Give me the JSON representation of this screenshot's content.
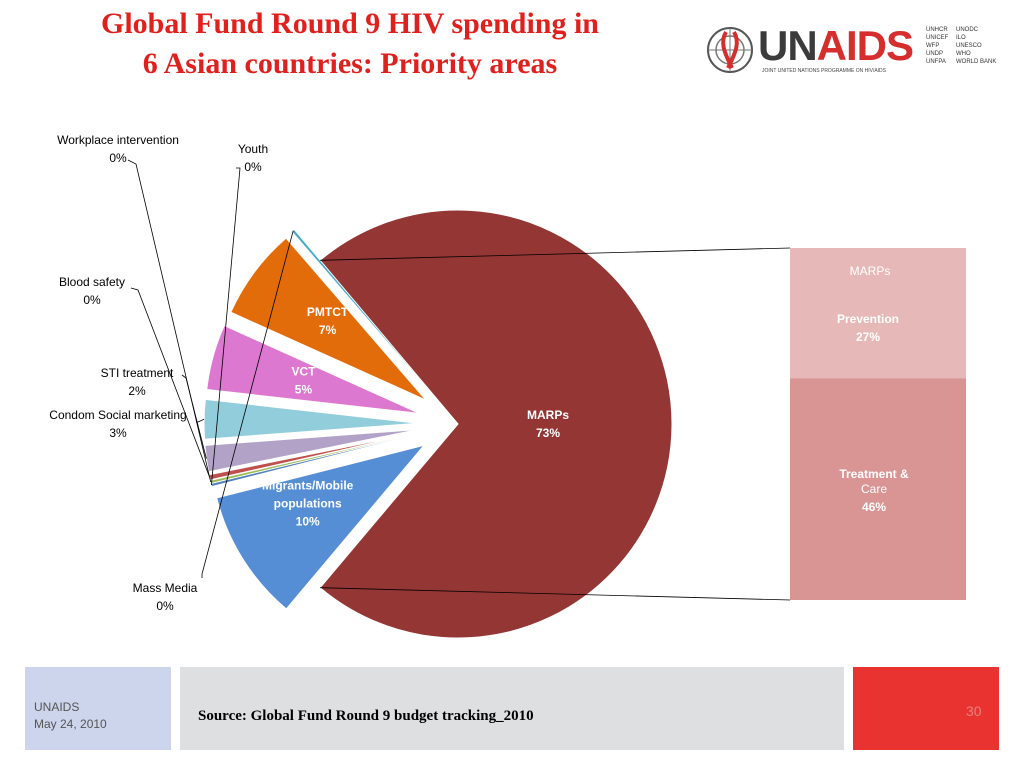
{
  "title": {
    "line1": "Global Fund Round 9 HIV spending in",
    "line2": "6 Asian countries: Priority areas"
  },
  "logo": {
    "wordmark_left": "UN",
    "wordmark_right": "AIDS",
    "subtitle": "JOINT UNITED NATIONS PROGRAMME ON HIV/AIDS",
    "cosponsors_col1": "UNHCR\nUNICEF\nWFP\nUNDP\nUNFPA",
    "cosponsors_col2": "UNODC\nILO\nUNESCO\nWHO\nWORLD BANK"
  },
  "chart_data": {
    "type": "pie",
    "slices": [
      {
        "label": "MARPs",
        "percent_label": "73%",
        "value": 73,
        "color": "#943634"
      },
      {
        "label": "Migrants/Mobile populations",
        "percent_label": "10%",
        "value": 10,
        "color": "#558ed5"
      },
      {
        "label": "Youth",
        "percent_label": "0%",
        "value": 0.2,
        "color": "#4f81bd"
      },
      {
        "label": "Workplace intervention",
        "percent_label": "0%",
        "value": 0.2,
        "color": "#9bbb59"
      },
      {
        "label": "Blood safety",
        "percent_label": "0%",
        "value": 0.4,
        "color": "#c0504d"
      },
      {
        "label": "STI treatment",
        "percent_label": "2%",
        "value": 2,
        "color": "#b2a2c7"
      },
      {
        "label": "Condom Social marketing",
        "percent_label": "3%",
        "value": 3,
        "color": "#92cddc"
      },
      {
        "label": "VCT",
        "percent_label": "5%",
        "value": 5,
        "color": "#dc78d0"
      },
      {
        "label": "PMTCT",
        "percent_label": "7%",
        "value": 7,
        "color": "#e36c0a"
      },
      {
        "label": "Mass Media",
        "percent_label": "0%",
        "value": 0.2,
        "color": "#4bacc6"
      }
    ],
    "breakdown": {
      "of": "MARPs",
      "title": "MARPs",
      "segments": [
        {
          "label": "Prevention",
          "percent_label": "27%",
          "value": 27,
          "color": "#e6b9b8"
        },
        {
          "label": "Treatment & Care",
          "percent_label": "46%",
          "value": 46,
          "color": "#d99594"
        }
      ]
    }
  },
  "footer": {
    "org": "UNAIDS",
    "date": "May 24, 2010",
    "source": "Source: Global Fund Round 9 budget tracking_2010",
    "page": "30"
  }
}
